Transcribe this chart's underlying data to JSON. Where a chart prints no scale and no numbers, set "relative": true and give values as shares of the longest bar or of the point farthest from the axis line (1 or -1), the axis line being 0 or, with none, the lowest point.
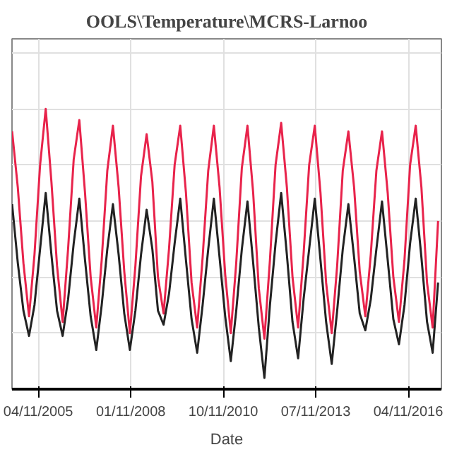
{
  "chart_data": {
    "type": "line",
    "title": "OOLS\\Temperature\\MCRS-Larnoo",
    "xlabel": "Date",
    "relative": true,
    "grid": true,
    "marker": "none",
    "line_style": "solid",
    "x": [
      "2004-07",
      "2004-09",
      "2004-11",
      "2005-01",
      "2005-03",
      "2005-05",
      "2005-07",
      "2005-09",
      "2005-11",
      "2006-01",
      "2006-03",
      "2006-05",
      "2006-07",
      "2006-09",
      "2006-11",
      "2007-01",
      "2007-03",
      "2007-05",
      "2007-07",
      "2007-09",
      "2007-11",
      "2008-01",
      "2008-03",
      "2008-05",
      "2008-07",
      "2008-09",
      "2008-11",
      "2009-01",
      "2009-03",
      "2009-05",
      "2009-07",
      "2009-09",
      "2009-11",
      "2010-01",
      "2010-03",
      "2010-05",
      "2010-07",
      "2010-09",
      "2010-11",
      "2011-01",
      "2011-03",
      "2011-05",
      "2011-07",
      "2011-09",
      "2011-11",
      "2012-01",
      "2012-03",
      "2012-05",
      "2012-07",
      "2012-09",
      "2012-11",
      "2013-01",
      "2013-03",
      "2013-05",
      "2013-07",
      "2013-09",
      "2013-11",
      "2014-01",
      "2014-03",
      "2014-05",
      "2014-07",
      "2014-09",
      "2014-11",
      "2015-01",
      "2015-03",
      "2015-05",
      "2015-07",
      "2015-09",
      "2015-11",
      "2016-01",
      "2016-03",
      "2016-05",
      "2016-07",
      "2016-09",
      "2016-11",
      "2017-01",
      "2017-03"
    ],
    "xlim": [
      "2004-06-30",
      "2017-04-06"
    ],
    "xticks": [
      {
        "value": "2005-04-11",
        "label": "04/11/2005"
      },
      {
        "value": "2008-01-11",
        "label": "01/11/2008"
      },
      {
        "value": "2010-10-11",
        "label": "10/11/2010"
      },
      {
        "value": "2013-07-11",
        "label": "07/11/2013"
      },
      {
        "value": "2016-04-11",
        "label": "04/11/2016"
      }
    ],
    "series": [
      {
        "color": "#e8234b",
        "values": [
          0.92,
          0.72,
          0.45,
          0.26,
          0.48,
          0.8,
          1.0,
          0.74,
          0.44,
          0.24,
          0.5,
          0.82,
          0.96,
          0.7,
          0.4,
          0.22,
          0.46,
          0.78,
          0.94,
          0.72,
          0.42,
          0.2,
          0.44,
          0.76,
          0.91,
          0.74,
          0.4,
          0.27,
          0.5,
          0.8,
          0.94,
          0.7,
          0.38,
          0.22,
          0.47,
          0.78,
          0.94,
          0.72,
          0.41,
          0.2,
          0.45,
          0.79,
          0.94,
          0.7,
          0.36,
          0.18,
          0.46,
          0.8,
          0.95,
          0.72,
          0.4,
          0.22,
          0.48,
          0.8,
          0.94,
          0.7,
          0.38,
          0.2,
          0.44,
          0.78,
          0.92,
          0.72,
          0.42,
          0.26,
          0.48,
          0.78,
          0.92,
          0.7,
          0.4,
          0.24,
          0.46,
          0.8,
          0.94,
          0.72,
          0.38,
          0.22,
          0.6
        ]
      },
      {
        "color": "#222222",
        "values": [
          0.66,
          0.45,
          0.28,
          0.19,
          0.3,
          0.5,
          0.7,
          0.48,
          0.28,
          0.19,
          0.32,
          0.52,
          0.68,
          0.46,
          0.26,
          0.14,
          0.3,
          0.5,
          0.66,
          0.48,
          0.27,
          0.14,
          0.28,
          0.48,
          0.64,
          0.5,
          0.28,
          0.23,
          0.34,
          0.52,
          0.68,
          0.46,
          0.25,
          0.13,
          0.3,
          0.5,
          0.68,
          0.47,
          0.26,
          0.1,
          0.28,
          0.5,
          0.67,
          0.45,
          0.22,
          0.04,
          0.3,
          0.52,
          0.7,
          0.48,
          0.24,
          0.11,
          0.32,
          0.5,
          0.68,
          0.46,
          0.24,
          0.09,
          0.28,
          0.5,
          0.66,
          0.47,
          0.27,
          0.21,
          0.32,
          0.5,
          0.67,
          0.46,
          0.25,
          0.16,
          0.3,
          0.52,
          0.68,
          0.47,
          0.24,
          0.13,
          0.38
        ]
      }
    ]
  }
}
